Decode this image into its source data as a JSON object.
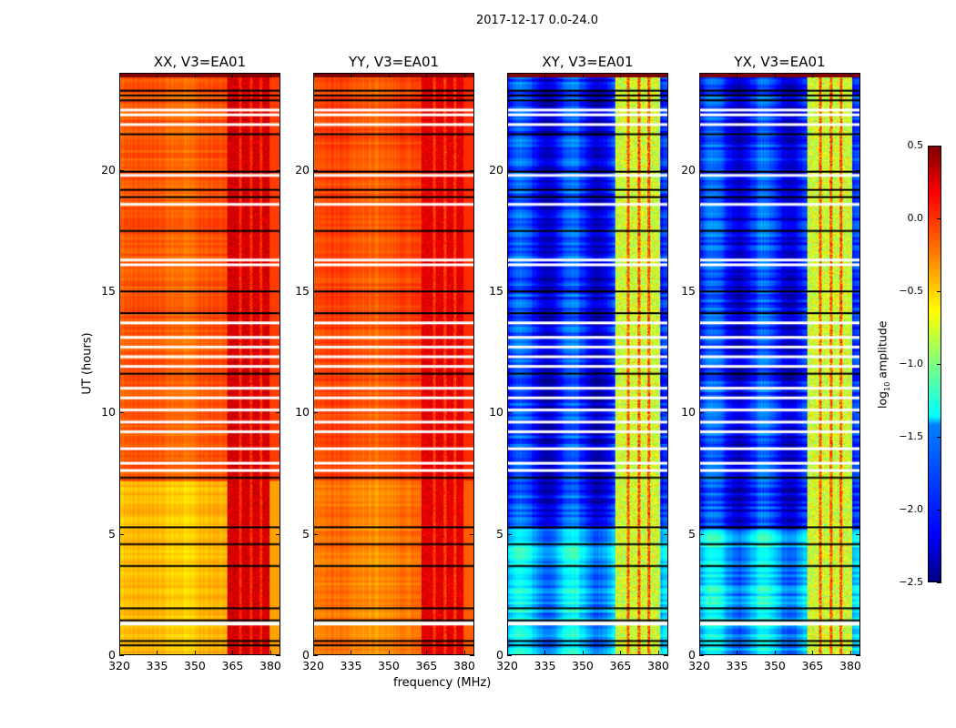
{
  "figure_title": "2017-12-17 0.0-24.0",
  "chart_data": {
    "type": "heatmap",
    "title": "2017-12-17 0.0-24.0",
    "xlabel": "frequency (MHz)",
    "ylabel": "UT (hours)",
    "xlim": [
      320,
      384
    ],
    "ylim": [
      0,
      24
    ],
    "xticks": [
      "320",
      "335",
      "350",
      "365",
      "380"
    ],
    "yticks": [
      "0",
      "5",
      "10",
      "15",
      "20"
    ],
    "xtick_values": [
      320,
      335,
      350,
      365,
      380
    ],
    "ytick_values": [
      0,
      5,
      10,
      15,
      20
    ],
    "colormap": "jet",
    "clim": [
      -2.5,
      0.5
    ],
    "colorbar": {
      "label": "log10 amplitude",
      "label_main": "log",
      "label_sub": "10",
      "label_rest": " amplitude",
      "ticks": [
        "0.5",
        "0.0",
        "−0.5",
        "−1.0",
        "−1.5",
        "−2.0",
        "−2.5"
      ],
      "tick_values": [
        0.5,
        0.0,
        -0.5,
        -1.0,
        -1.5,
        -2.0,
        -2.5
      ]
    },
    "rfi_band_mhz": [
      363,
      381
    ],
    "panels": [
      {
        "title": "XX, V3=EA01",
        "kind": "auto",
        "base_low": -0.45,
        "base_high": -0.15,
        "band_level": 0.25
      },
      {
        "title": "YY, V3=EA01",
        "kind": "auto",
        "base_low": -0.25,
        "base_high": -0.1,
        "band_level": 0.2
      },
      {
        "title": "XY, V3=EA01",
        "kind": "cross",
        "base_low": -1.55,
        "base_high": -2.05,
        "band_level": -0.75
      },
      {
        "title": "YX, V3=EA01",
        "kind": "cross",
        "base_low": -1.55,
        "base_high": -2.05,
        "band_level": -0.75
      }
    ],
    "flagged_black_hours": [
      0.37,
      0.55,
      1.4,
      1.9,
      3.65,
      4.55,
      5.25,
      7.3,
      11.6,
      14.1,
      15.0,
      17.5,
      18.9,
      19.2,
      19.95,
      21.5,
      22.9,
      23.1,
      23.3
    ],
    "flagged_white_hours": [
      1.3,
      1.25,
      7.6,
      7.9,
      8.5,
      9.2,
      9.6,
      10.1,
      10.6,
      11.0,
      11.9,
      12.3,
      12.7,
      13.1,
      13.7,
      16.1,
      16.3,
      18.6,
      19.8,
      21.9,
      22.3,
      22.5
    ]
  }
}
